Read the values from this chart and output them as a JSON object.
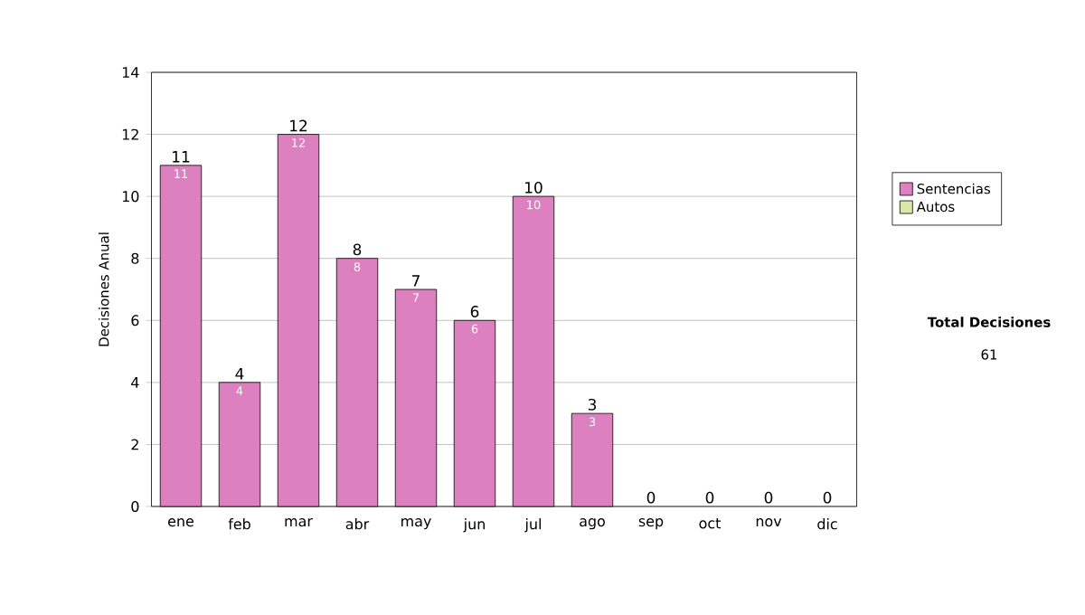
{
  "chart_data": {
    "type": "bar",
    "stacked": true,
    "ylabel": "Decisiones Anual",
    "categories": [
      "ene",
      "feb",
      "mar",
      "abr",
      "may",
      "jun",
      "jul",
      "ago",
      "sep",
      "oct",
      "nov",
      "dic"
    ],
    "series": [
      {
        "name": "Sentencias",
        "color": "#dd80c0",
        "values": [
          11,
          4,
          12,
          8,
          7,
          6,
          10,
          3,
          0,
          0,
          0,
          0
        ],
        "value_labels": [
          "11",
          "4",
          "12",
          "8",
          "7",
          "6",
          "10",
          "3",
          null,
          null,
          null,
          null
        ]
      },
      {
        "name": "Autos",
        "color": "#d8e8a8",
        "values": [
          0,
          0,
          0,
          0,
          0,
          0,
          0,
          0,
          0,
          0,
          0,
          0
        ]
      }
    ],
    "totals": [
      "11",
      "4",
      "12",
      "8",
      "7",
      "6",
      "10",
      "3",
      "0",
      "0",
      "0",
      "0"
    ],
    "ylim": [
      0,
      14
    ],
    "yticks": [
      0,
      2,
      4,
      6,
      8,
      10,
      12,
      14
    ],
    "grid": "y",
    "legend": "right",
    "annotations": [
      "Total Decisiones",
      "61"
    ]
  }
}
